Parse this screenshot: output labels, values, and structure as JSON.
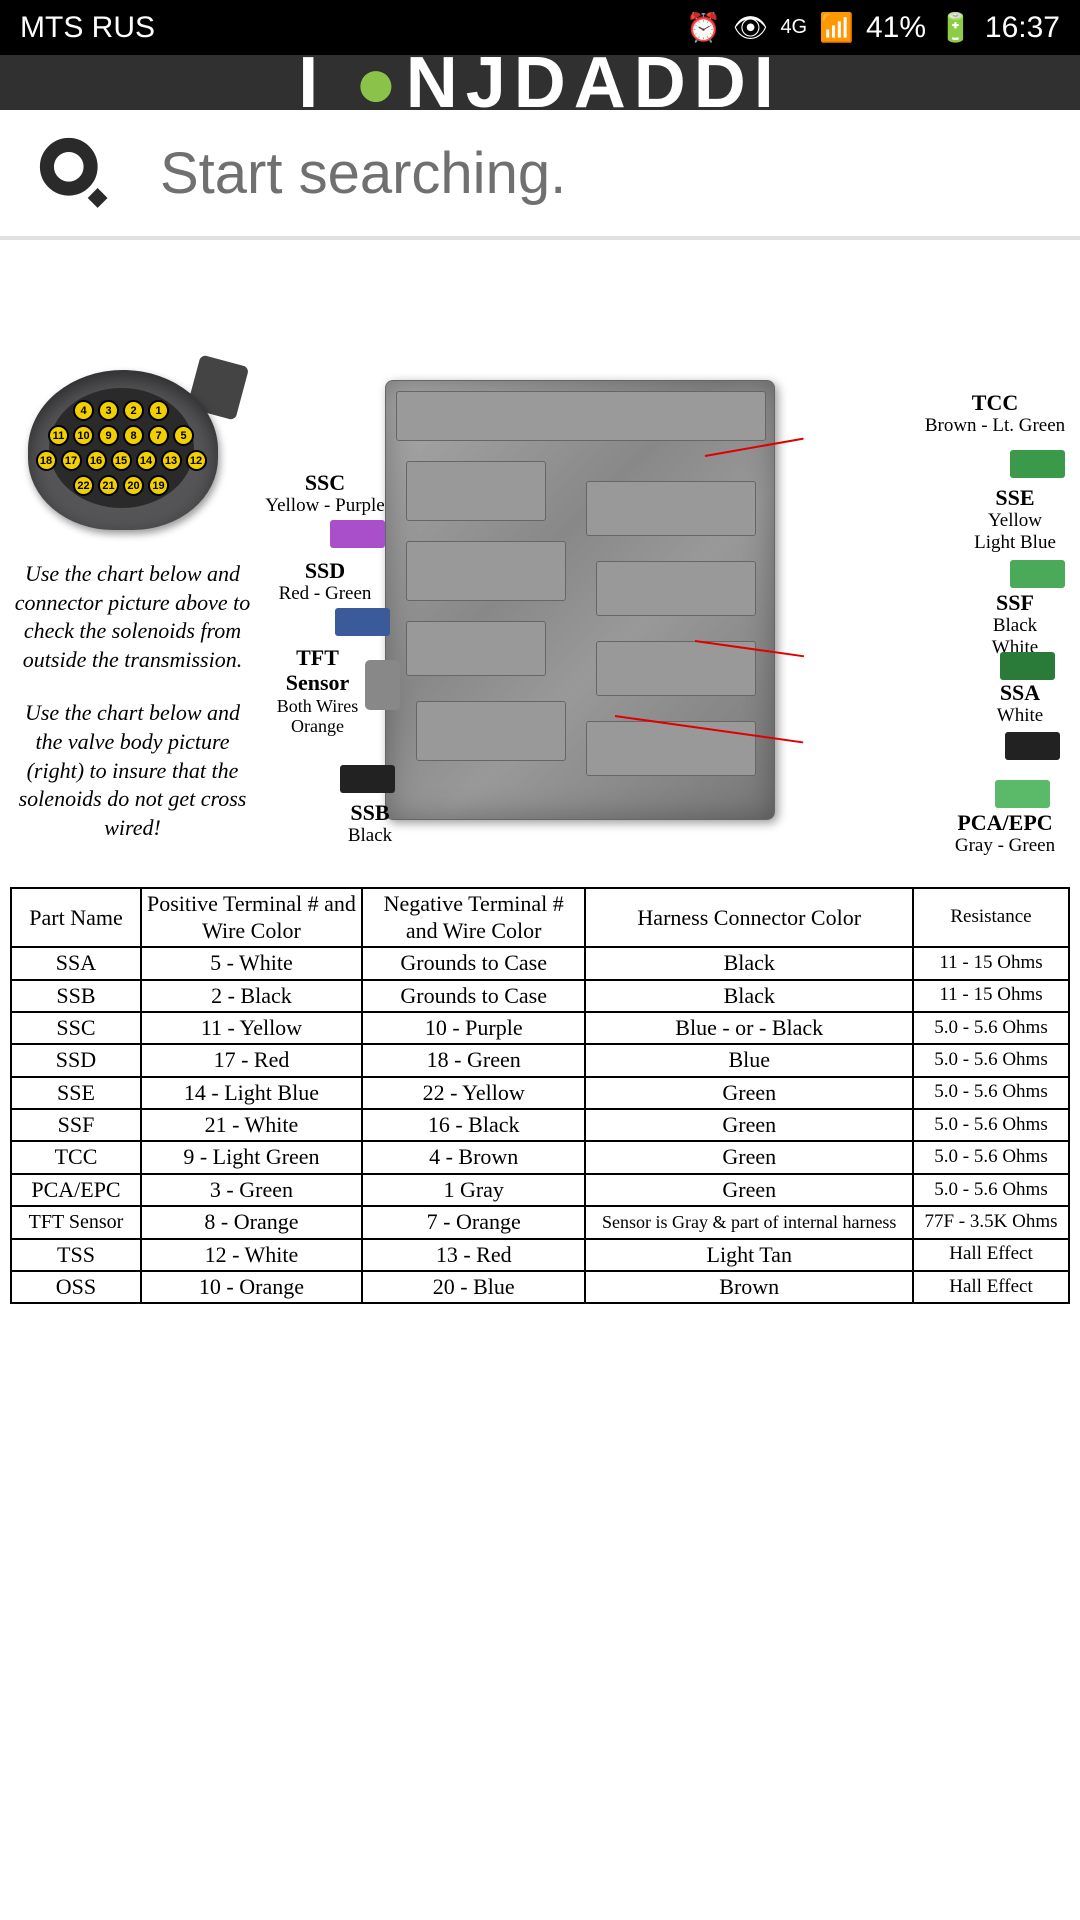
{
  "status": {
    "carrier": "MTS RUS",
    "network": "4G",
    "battery": "41%",
    "time": "16:37"
  },
  "header": {
    "logo": "I ▪NJDADDI"
  },
  "search": {
    "placeholder": "Start searching."
  },
  "connector": {
    "rows": [
      [
        "4",
        "3",
        "2",
        "1"
      ],
      [
        "11",
        "10",
        "9",
        "8",
        "7",
        "5"
      ],
      [
        "18",
        "17",
        "16",
        "15",
        "14",
        "13",
        "12"
      ],
      [
        "22",
        "21",
        "20",
        "19"
      ]
    ]
  },
  "instructions": {
    "p1": "Use the chart below and connector picture above to check the solenoids from outside the transmission.",
    "p2": "Use the chart below and the valve body picture (right) to insure that the solenoids do not get cross wired!"
  },
  "callouts": {
    "ssc": {
      "name": "SSC",
      "sub": "Yellow - Purple"
    },
    "ssd": {
      "name": "SSD",
      "sub": "Red - Green"
    },
    "tft": {
      "name": "TFT Sensor",
      "sub": "Both Wires Orange",
      "name1": "TFT",
      "name2": "Sensor"
    },
    "ssb": {
      "name": "SSB",
      "sub": "Black"
    },
    "tcc": {
      "name": "TCC",
      "sub": "Brown - Lt. Green"
    },
    "sse": {
      "name": "SSE",
      "sub": "Yellow Light Blue",
      "sub1": "Yellow",
      "sub2": "Light Blue"
    },
    "ssf": {
      "name": "SSF",
      "sub": "Black White",
      "sub1": "Black",
      "sub2": "White"
    },
    "ssa": {
      "name": "SSA",
      "sub": "White"
    },
    "pca": {
      "name": "PCA/EPC",
      "sub": "Gray - Green"
    }
  },
  "plug_colors": {
    "purple": "#a84fc9",
    "blue": "#3a5a9a",
    "orange": "#d07830",
    "black": "#222",
    "green": "#3a9a4a",
    "green2": "#4aaa5a",
    "dgreen": "#2a7a3a",
    "lgreen": "#5aba6a"
  },
  "table": {
    "headers": [
      "Part Name",
      "Positive Terminal # and Wire Color",
      "Negative Terminal # and Wire Color",
      "Harness Connector Color",
      "Resistance"
    ],
    "rows": [
      [
        "SSA",
        "5 - White",
        "Grounds to Case",
        "Black",
        "11 - 15 Ohms"
      ],
      [
        "SSB",
        "2 - Black",
        "Grounds to Case",
        "Black",
        "11 - 15 Ohms"
      ],
      [
        "SSC",
        "11 - Yellow",
        "10 - Purple",
        "Blue - or - Black",
        "5.0 - 5.6 Ohms"
      ],
      [
        "SSD",
        "17 - Red",
        "18 - Green",
        "Blue",
        "5.0 - 5.6 Ohms"
      ],
      [
        "SSE",
        "14 - Light Blue",
        "22 - Yellow",
        "Green",
        "5.0 - 5.6 Ohms"
      ],
      [
        "SSF",
        "21 - White",
        "16 - Black",
        "Green",
        "5.0 - 5.6 Ohms"
      ],
      [
        "TCC",
        "9 - Light Green",
        "4 - Brown",
        "Green",
        "5.0 - 5.6 Ohms"
      ],
      [
        "PCA/EPC",
        "3 - Green",
        "1 Gray",
        "Green",
        "5.0 - 5.6 Ohms"
      ],
      [
        "TFT Sensor",
        "8 - Orange",
        "7 - Orange",
        "Sensor is Gray & part of internal harness",
        "77F - 3.5K Ohms"
      ],
      [
        "TSS",
        "12 - White",
        "13 - Red",
        "Light Tan",
        "Hall Effect"
      ],
      [
        "OSS",
        "10 - Orange",
        "20 - Blue",
        "Brown",
        "Hall Effect"
      ]
    ],
    "small_font_rows": [
      8
    ]
  }
}
